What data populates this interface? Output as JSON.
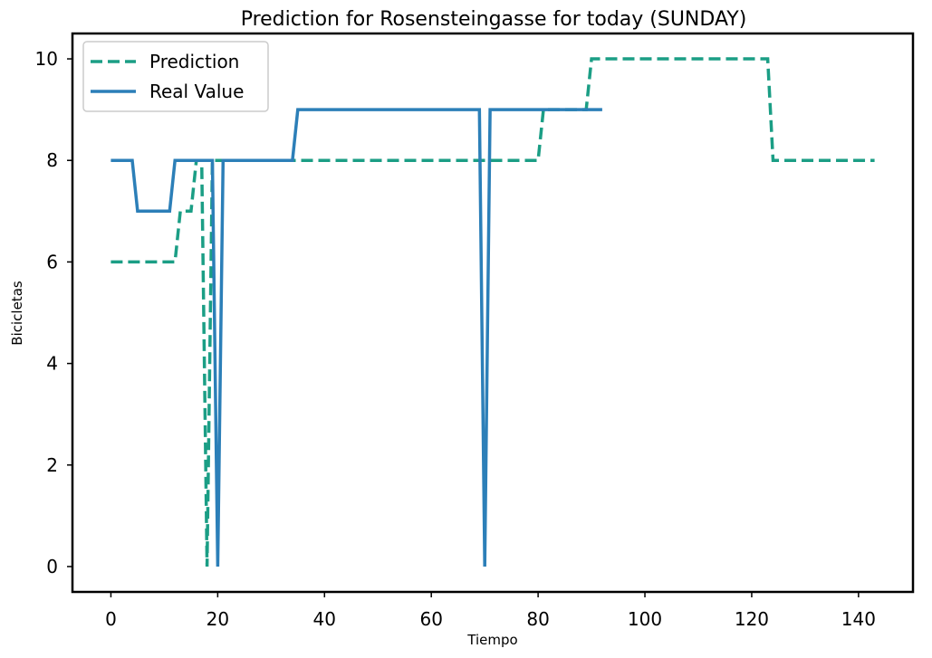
{
  "chart_data": {
    "type": "line",
    "title": "Prediction for Rosensteingasse for today (SUNDAY)",
    "xlabel": "Tiempo",
    "ylabel": "Bicicletas",
    "xlim": [
      -7.2,
      150.2
    ],
    "ylim": [
      -0.5,
      10.5
    ],
    "xticks": [
      0,
      20,
      40,
      60,
      80,
      100,
      120,
      140
    ],
    "yticks": [
      0,
      2,
      4,
      6,
      8,
      10
    ],
    "grid": false,
    "legend": "upper-left",
    "series": [
      {
        "name": "Prediction",
        "color": "#1b9e85",
        "style": "dashed",
        "points": [
          [
            0,
            6
          ],
          [
            12,
            6
          ],
          [
            13,
            7
          ],
          [
            15,
            7
          ],
          [
            16,
            8
          ],
          [
            17,
            8
          ],
          [
            18,
            0
          ],
          [
            19,
            8
          ],
          [
            20,
            8
          ],
          [
            21,
            8
          ],
          [
            34,
            8
          ],
          [
            80,
            8
          ],
          [
            81,
            9
          ],
          [
            89,
            9
          ],
          [
            90,
            10
          ],
          [
            123,
            10
          ],
          [
            124,
            8
          ],
          [
            143,
            8
          ]
        ]
      },
      {
        "name": "Real Value",
        "color": "#2c7fb8",
        "style": "solid",
        "points": [
          [
            0,
            8
          ],
          [
            4,
            8
          ],
          [
            5,
            7
          ],
          [
            11,
            7
          ],
          [
            12,
            8
          ],
          [
            19,
            8
          ],
          [
            20,
            0
          ],
          [
            21,
            8
          ],
          [
            34,
            8
          ],
          [
            35,
            9
          ],
          [
            69,
            9
          ],
          [
            70,
            0
          ],
          [
            71,
            9
          ],
          [
            92,
            9
          ]
        ]
      }
    ]
  }
}
